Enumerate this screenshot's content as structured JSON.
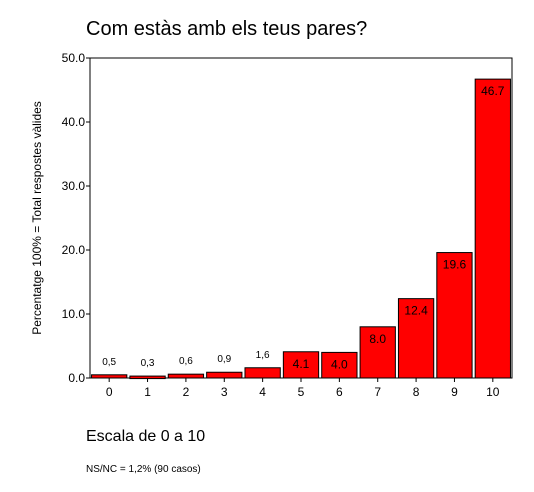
{
  "chart_data": {
    "type": "bar",
    "title": "Com estàs amb els teus pares?",
    "xlabel": "Escala de 0 a 10",
    "ylabel": "Percentatge 100% = Total respostes vàlides",
    "footnote": "NS/NC = 1,2% (90 casos)",
    "categories": [
      "0",
      "1",
      "2",
      "3",
      "4",
      "5",
      "6",
      "7",
      "8",
      "9",
      "10"
    ],
    "values": [
      0.5,
      0.3,
      0.6,
      0.9,
      1.6,
      4.1,
      4.0,
      8.0,
      12.4,
      19.6,
      46.7
    ],
    "value_labels": [
      "0,5",
      "0,3",
      "0,6",
      "0,9",
      "1,6",
      "4.1",
      "4.0",
      "8.0",
      "12.4",
      "19.6",
      "46.7"
    ],
    "ylim": [
      0,
      50
    ],
    "yticks": [
      0,
      10,
      20,
      30,
      40,
      50
    ],
    "ytick_labels": [
      "0.0",
      "10.0",
      "20.0",
      "30.0",
      "40.0",
      "50.0"
    ],
    "bar_color": "#ff0000",
    "grid": false
  }
}
